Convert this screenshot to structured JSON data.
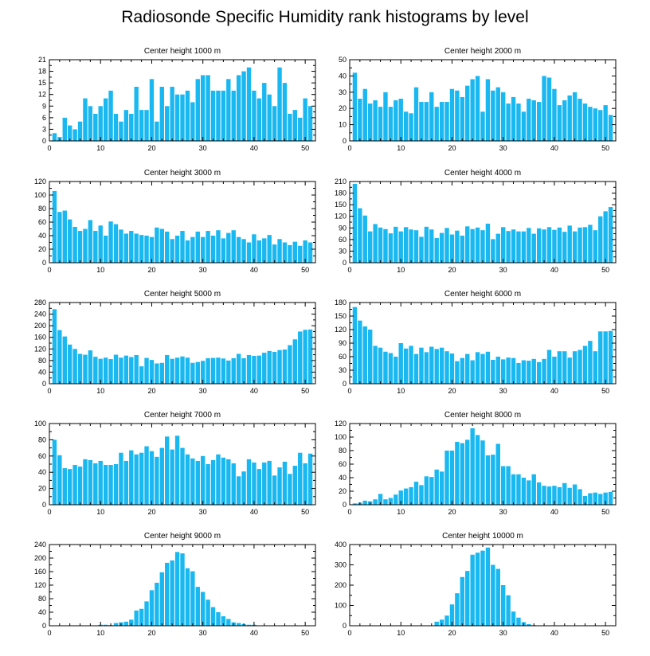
{
  "title": "Radiosonde Specific Humidity rank histograms by level",
  "colors": {
    "bar": "#1ab8f0",
    "axis": "#000000",
    "background": "#ffffff"
  },
  "chart_data": [
    {
      "type": "bar",
      "title": "Center height 1000 m",
      "xlim": [
        0,
        52
      ],
      "ylim": [
        0,
        21
      ],
      "xticks": [
        0,
        10,
        20,
        30,
        40,
        50
      ],
      "yticks": [
        0,
        3,
        6,
        9,
        12,
        15,
        18,
        21
      ],
      "x_start": 1,
      "values": [
        2,
        1,
        6,
        4,
        3,
        5,
        11,
        9,
        7,
        9,
        11,
        13,
        7,
        5,
        8,
        7,
        14,
        8,
        8,
        16,
        5,
        14,
        9,
        14,
        12,
        12,
        13,
        10,
        16,
        17,
        17,
        13,
        13,
        13,
        16,
        13,
        17,
        18,
        19,
        13,
        11,
        15,
        12,
        9,
        19,
        15,
        7,
        8,
        6,
        11,
        9
      ]
    },
    {
      "type": "bar",
      "title": "Center height 2000 m",
      "xlim": [
        0,
        52
      ],
      "ylim": [
        0,
        50
      ],
      "xticks": [
        0,
        10,
        20,
        30,
        40,
        50
      ],
      "yticks": [
        0,
        10,
        20,
        30,
        40,
        50
      ],
      "x_start": 1,
      "values": [
        42,
        26,
        32,
        23,
        25,
        21,
        30,
        21,
        25,
        26,
        18,
        17,
        33,
        24,
        24,
        30,
        21,
        24,
        24,
        32,
        31,
        27,
        34,
        38,
        40,
        18,
        38,
        31,
        33,
        30,
        23,
        27,
        23,
        18,
        26,
        25,
        24,
        40,
        39,
        32,
        22,
        25,
        28,
        30,
        26,
        23,
        21,
        20,
        19,
        22,
        16
      ]
    },
    {
      "type": "bar",
      "title": "Center height 3000 m",
      "xlim": [
        0,
        52
      ],
      "ylim": [
        0,
        120
      ],
      "xticks": [
        0,
        10,
        20,
        30,
        40,
        50
      ],
      "yticks": [
        0,
        20,
        40,
        60,
        80,
        100,
        120
      ],
      "x_start": 1,
      "values": [
        106,
        75,
        77,
        64,
        53,
        47,
        50,
        63,
        47,
        55,
        40,
        61,
        57,
        49,
        43,
        47,
        43,
        41,
        40,
        38,
        52,
        50,
        46,
        35,
        40,
        47,
        33,
        38,
        46,
        38,
        47,
        40,
        48,
        36,
        44,
        48,
        38,
        35,
        30,
        42,
        33,
        36,
        41,
        27,
        35,
        30,
        26,
        31,
        25,
        33,
        30
      ]
    },
    {
      "type": "bar",
      "title": "Center height 4000 m",
      "xlim": [
        0,
        52
      ],
      "ylim": [
        0,
        210
      ],
      "xticks": [
        0,
        10,
        20,
        30,
        40,
        50
      ],
      "yticks": [
        0,
        30,
        60,
        90,
        120,
        150,
        180,
        210
      ],
      "x_start": 1,
      "values": [
        204,
        141,
        122,
        81,
        100,
        91,
        87,
        76,
        93,
        81,
        92,
        86,
        84,
        67,
        93,
        86,
        64,
        77,
        90,
        73,
        83,
        70,
        94,
        87,
        91,
        84,
        101,
        61,
        75,
        92,
        82,
        86,
        81,
        81,
        90,
        75,
        89,
        86,
        92,
        85,
        91,
        80,
        96,
        81,
        91,
        92,
        98,
        84,
        120,
        133,
        144
      ]
    },
    {
      "type": "bar",
      "title": "Center height 5000 m",
      "xlim": [
        0,
        52
      ],
      "ylim": [
        0,
        280
      ],
      "xticks": [
        0,
        10,
        20,
        30,
        40,
        50
      ],
      "yticks": [
        0,
        40,
        80,
        120,
        160,
        200,
        240,
        280
      ],
      "x_start": 1,
      "values": [
        257,
        185,
        163,
        135,
        120,
        103,
        100,
        115,
        93,
        86,
        90,
        85,
        100,
        90,
        97,
        92,
        99,
        60,
        89,
        82,
        70,
        72,
        99,
        86,
        90,
        94,
        90,
        72,
        75,
        79,
        88,
        89,
        90,
        87,
        80,
        88,
        103,
        88,
        99,
        96,
        97,
        107,
        113,
        110,
        116,
        118,
        133,
        153,
        180,
        186,
        187
      ]
    },
    {
      "type": "bar",
      "title": "Center height 6000 m",
      "xlim": [
        0,
        52
      ],
      "ylim": [
        0,
        180
      ],
      "xticks": [
        0,
        10,
        20,
        30,
        40,
        50
      ],
      "yticks": [
        0,
        30,
        60,
        90,
        120,
        150,
        180
      ],
      "x_start": 1,
      "values": [
        170,
        140,
        127,
        120,
        84,
        80,
        71,
        68,
        60,
        90,
        78,
        84,
        66,
        80,
        70,
        82,
        77,
        80,
        72,
        67,
        50,
        57,
        66,
        52,
        70,
        66,
        71,
        53,
        60,
        54,
        58,
        57,
        46,
        52,
        51,
        55,
        48,
        55,
        75,
        60,
        72,
        72,
        58,
        72,
        75,
        84,
        95,
        72,
        116,
        116,
        117
      ]
    },
    {
      "type": "bar",
      "title": "Center height 7000 m",
      "xlim": [
        0,
        52
      ],
      "ylim": [
        0,
        100
      ],
      "xticks": [
        0,
        10,
        20,
        30,
        40,
        50
      ],
      "yticks": [
        0,
        20,
        40,
        60,
        80,
        100
      ],
      "x_start": 1,
      "values": [
        80,
        61,
        45,
        44,
        49,
        47,
        56,
        55,
        51,
        54,
        49,
        49,
        50,
        64,
        54,
        67,
        62,
        64,
        72,
        66,
        59,
        70,
        84,
        68,
        85,
        70,
        62,
        57,
        54,
        60,
        50,
        55,
        62,
        58,
        56,
        51,
        35,
        41,
        56,
        52,
        44,
        52,
        54,
        36,
        46,
        53,
        38,
        48,
        64,
        51,
        63
      ]
    },
    {
      "type": "bar",
      "title": "Center height 8000 m",
      "xlim": [
        0,
        52
      ],
      "ylim": [
        0,
        120
      ],
      "xticks": [
        0,
        10,
        20,
        30,
        40,
        50
      ],
      "yticks": [
        0,
        20,
        40,
        60,
        80,
        100,
        120
      ],
      "x_start": 1,
      "values": [
        2,
        3,
        6,
        5,
        8,
        16,
        8,
        10,
        15,
        21,
        24,
        26,
        34,
        29,
        42,
        41,
        52,
        49,
        80,
        80,
        93,
        91,
        96,
        113,
        103,
        95,
        73,
        74,
        90,
        57,
        57,
        45,
        45,
        40,
        36,
        45,
        33,
        28,
        27,
        28,
        26,
        32,
        25,
        30,
        23,
        13,
        17,
        18,
        16,
        18,
        19
      ]
    },
    {
      "type": "bar",
      "title": "Center height 9000 m",
      "xlim": [
        0,
        52
      ],
      "ylim": [
        0,
        240
      ],
      "xticks": [
        0,
        10,
        20,
        30,
        40,
        50
      ],
      "yticks": [
        0,
        40,
        80,
        120,
        160,
        200,
        240
      ],
      "x_start": 1,
      "values": [
        0,
        0,
        0,
        0,
        0,
        0,
        0,
        0,
        1,
        3,
        3,
        2,
        8,
        10,
        12,
        18,
        45,
        50,
        72,
        105,
        127,
        158,
        186,
        193,
        218,
        214,
        170,
        161,
        115,
        100,
        77,
        55,
        40,
        28,
        20,
        10,
        8,
        5,
        3,
        3,
        1,
        1,
        0,
        0,
        0,
        0,
        0,
        0,
        0,
        0,
        0
      ]
    },
    {
      "type": "bar",
      "title": "Center height 10000 m",
      "xlim": [
        0,
        52
      ],
      "ylim": [
        0,
        400
      ],
      "xticks": [
        0,
        10,
        20,
        30,
        40,
        50
      ],
      "yticks": [
        0,
        100,
        200,
        300,
        400
      ],
      "x_start": 1,
      "values": [
        0,
        0,
        0,
        0,
        0,
        0,
        0,
        0,
        0,
        0,
        0,
        0,
        0,
        0,
        0,
        2,
        20,
        30,
        50,
        105,
        160,
        240,
        270,
        350,
        360,
        370,
        385,
        300,
        280,
        200,
        150,
        70,
        40,
        18,
        8,
        3,
        1,
        0,
        0,
        0,
        0,
        0,
        0,
        0,
        0,
        0,
        0,
        0,
        0,
        0,
        0
      ]
    }
  ]
}
